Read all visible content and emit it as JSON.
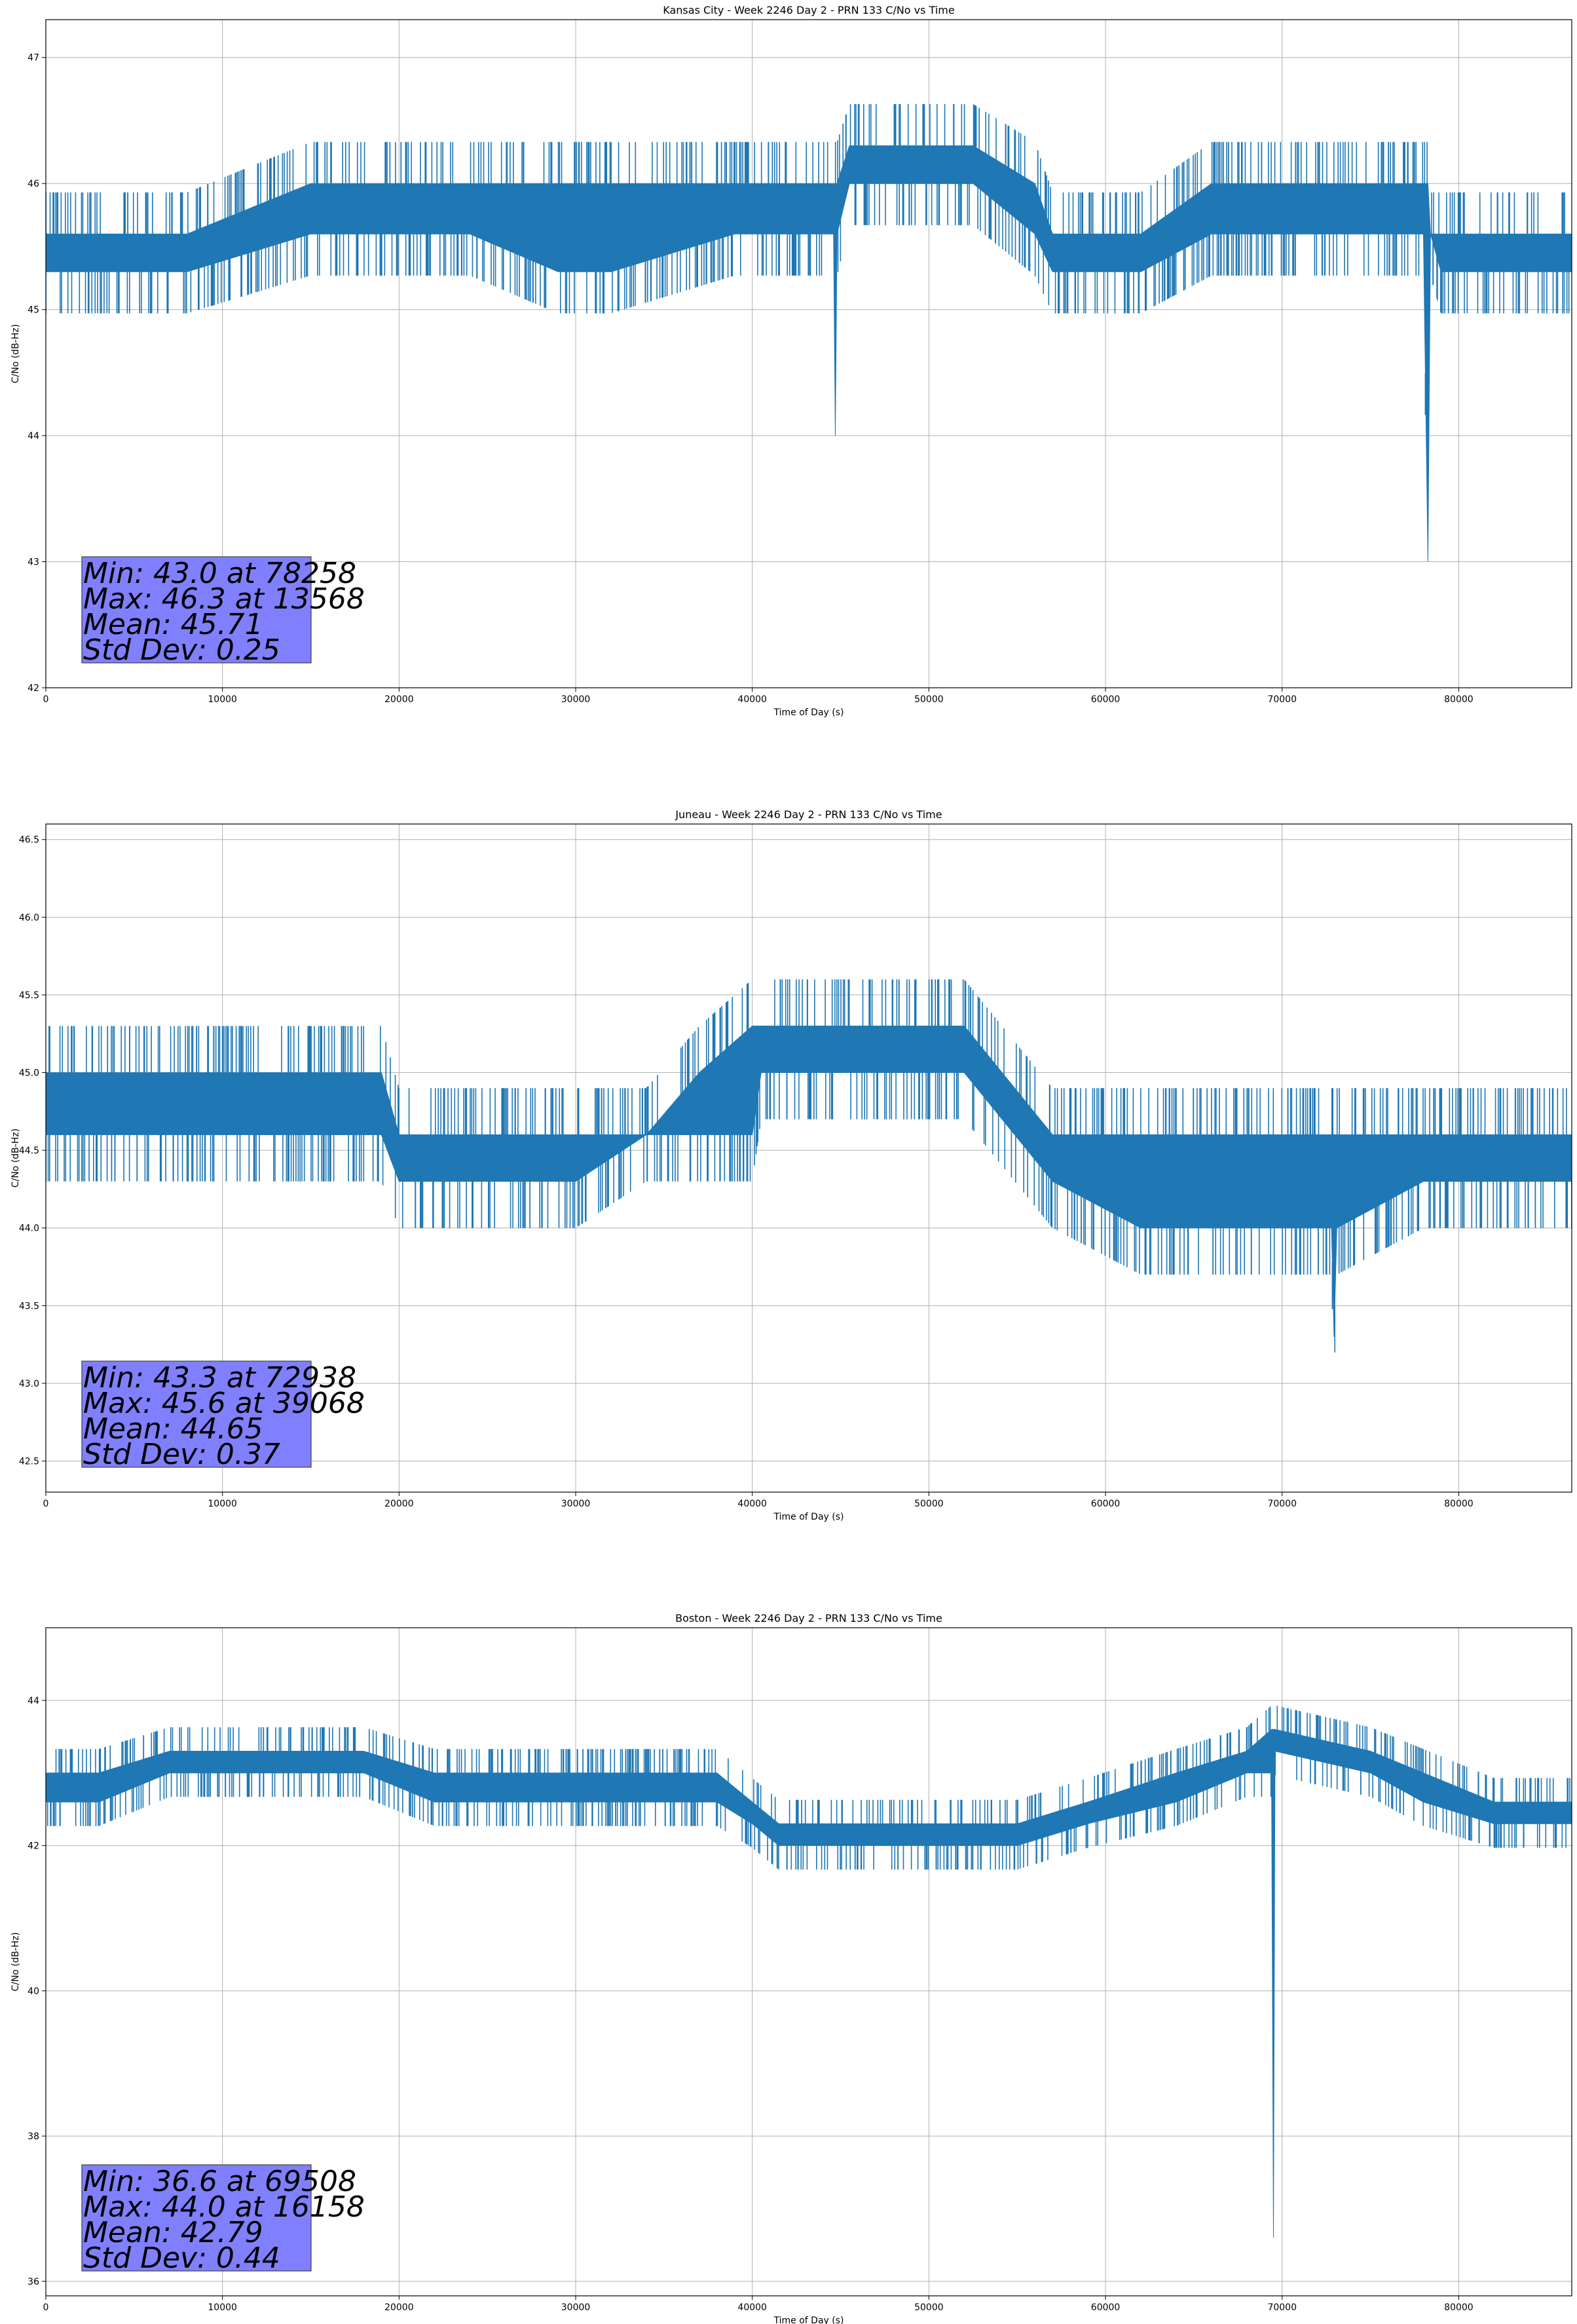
{
  "colors": {
    "series": "#1f77b4",
    "grid": "#b0b0b0",
    "stats_box": "#8080ff"
  },
  "chart_data": [
    {
      "type": "line",
      "title": "Kansas City - Week 2246 Day 2 - PRN 133 C/No vs Time",
      "xlabel": "Time of Day (s)",
      "ylabel": "C/No (dB-Hz)",
      "xlim": [
        0,
        86400
      ],
      "ylim": [
        42,
        47.3
      ],
      "xticks": [
        0,
        10000,
        20000,
        30000,
        40000,
        50000,
        60000,
        70000,
        80000
      ],
      "yticks": [
        42,
        43,
        44,
        45,
        46,
        47
      ],
      "ytick_labels": [
        "42",
        "43",
        "44",
        "45",
        "46",
        "47"
      ],
      "grid": true,
      "series": [
        {
          "x": [
            0,
            8000,
            15000,
            24000,
            29000,
            32000,
            39000,
            44600,
            44700,
            44800,
            45500,
            52500,
            56000,
            57000,
            62000,
            66000,
            73000,
            78000,
            78258,
            78400,
            79000,
            86400
          ],
          "low": [
            45.3,
            45.3,
            45.6,
            45.6,
            45.3,
            45.3,
            45.6,
            45.6,
            44.0,
            45.6,
            46.0,
            46.0,
            45.6,
            45.3,
            45.3,
            45.6,
            45.6,
            45.6,
            43.0,
            45.6,
            45.3,
            45.3
          ],
          "high": [
            45.6,
            45.6,
            46.0,
            46.0,
            46.0,
            46.0,
            46.0,
            46.0,
            46.0,
            46.0,
            46.3,
            46.3,
            46.0,
            45.6,
            45.6,
            46.0,
            46.0,
            46.0,
            46.0,
            45.6,
            45.6,
            45.6
          ]
        }
      ],
      "stats": [
        "Min: 43.0 at 78258",
        "Max: 46.3 at 13568",
        "Mean: 45.71",
        "Std Dev: 0.25"
      ]
    },
    {
      "type": "line",
      "title": "Juneau - Week 2246 Day 2 - PRN 133 C/No vs Time",
      "xlabel": "Time of Day (s)",
      "ylabel": "C/No (dB-Hz)",
      "xlim": [
        0,
        86400
      ],
      "ylim": [
        42.3,
        46.6
      ],
      "xticks": [
        0,
        10000,
        20000,
        30000,
        40000,
        50000,
        60000,
        70000,
        80000
      ],
      "yticks": [
        42.5,
        43.0,
        43.5,
        44.0,
        44.5,
        45.0,
        45.5,
        46.0,
        46.5
      ],
      "ytick_labels": [
        "42.5",
        "43.0",
        "43.5",
        "44.0",
        "44.5",
        "45.0",
        "45.5",
        "46.0",
        "46.5"
      ],
      "grid": true,
      "series": [
        {
          "x": [
            0,
            8000,
            19000,
            20000,
            30000,
            34000,
            37000,
            40000,
            40500,
            52000,
            57000,
            62000,
            70000,
            72800,
            72938,
            73100,
            78000,
            86400
          ],
          "low": [
            44.6,
            44.6,
            44.6,
            44.3,
            44.3,
            44.6,
            44.6,
            44.6,
            45.0,
            45.0,
            44.3,
            44.0,
            44.0,
            44.0,
            43.3,
            44.0,
            44.3,
            44.3
          ],
          "high": [
            45.0,
            45.0,
            45.0,
            44.6,
            44.6,
            44.6,
            45.0,
            45.3,
            45.3,
            45.3,
            44.6,
            44.6,
            44.6,
            44.6,
            44.6,
            44.6,
            44.6,
            44.6
          ]
        }
      ],
      "stats": [
        "Min: 43.3 at 72938",
        "Max: 45.6 at 39068",
        "Mean: 44.65",
        "Std Dev: 0.37"
      ]
    },
    {
      "type": "line",
      "title": "Boston - Week 2246 Day 2 - PRN 133 C/No vs Time",
      "xlabel": "Time of Day (s)",
      "ylabel": "C/No (dB-Hz)",
      "xlim": [
        0,
        86400
      ],
      "ylim": [
        35.8,
        45.0
      ],
      "xticks": [
        0,
        10000,
        20000,
        30000,
        40000,
        50000,
        60000,
        70000,
        80000
      ],
      "yticks": [
        36,
        38,
        40,
        42,
        44
      ],
      "ytick_labels": [
        "36",
        "38",
        "40",
        "42",
        "44"
      ],
      "grid": true,
      "series": [
        {
          "x": [
            0,
            3000,
            7000,
            18000,
            22000,
            38000,
            40000,
            41500,
            55000,
            59000,
            64000,
            68000,
            69400,
            69508,
            69600,
            75000,
            78000,
            82000,
            86400
          ],
          "low": [
            42.6,
            42.6,
            43.0,
            43.0,
            42.6,
            42.6,
            42.3,
            42.0,
            42.0,
            42.3,
            42.6,
            43.0,
            43.0,
            36.6,
            43.3,
            43.0,
            42.6,
            42.3,
            42.3
          ],
          "high": [
            43.0,
            43.0,
            43.3,
            43.3,
            43.0,
            43.0,
            42.6,
            42.3,
            42.3,
            42.6,
            43.0,
            43.3,
            43.6,
            43.6,
            43.6,
            43.3,
            43.0,
            42.6,
            42.6
          ]
        }
      ],
      "stats": [
        "Min: 36.6 at 69508",
        "Max: 44.0 at 16158",
        "Mean: 42.79",
        "Std Dev: 0.44"
      ]
    }
  ]
}
